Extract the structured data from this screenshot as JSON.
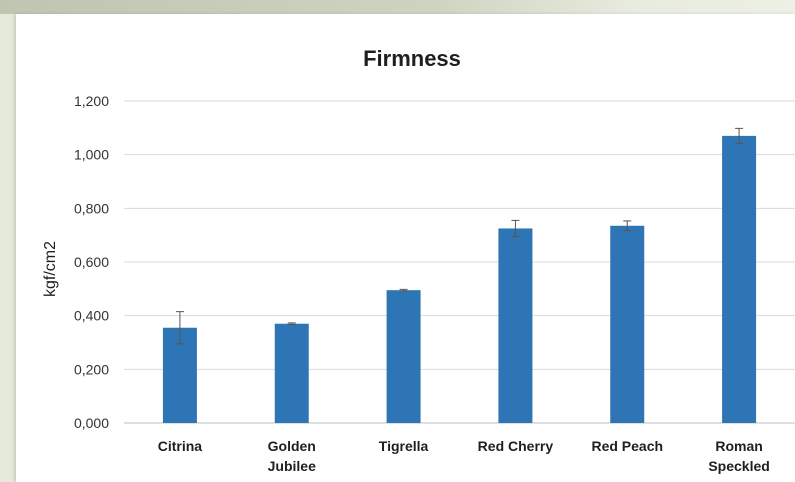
{
  "chart_data": {
    "type": "bar",
    "title": "Firmness",
    "xlabel": "",
    "ylabel": "kgf/cm2",
    "ylim": [
      0,
      1.2
    ],
    "y_ticks": [
      "0,000",
      "0,200",
      "0,400",
      "0,600",
      "0,800",
      "1,000",
      "1,200"
    ],
    "grid": true,
    "categories": [
      [
        "Citrina"
      ],
      [
        "Golden",
        "Jubilee"
      ],
      [
        "Tigrella"
      ],
      [
        "Red Cherry"
      ],
      [
        "Red Peach"
      ],
      [
        "Roman",
        "Speckled"
      ]
    ],
    "values": [
      0.355,
      0.37,
      0.495,
      0.725,
      0.735,
      1.07
    ],
    "errors": [
      0.06,
      0.003,
      0.003,
      0.03,
      0.018,
      0.028
    ],
    "bar_color": "#2e75b6",
    "error_color": "#555555"
  }
}
